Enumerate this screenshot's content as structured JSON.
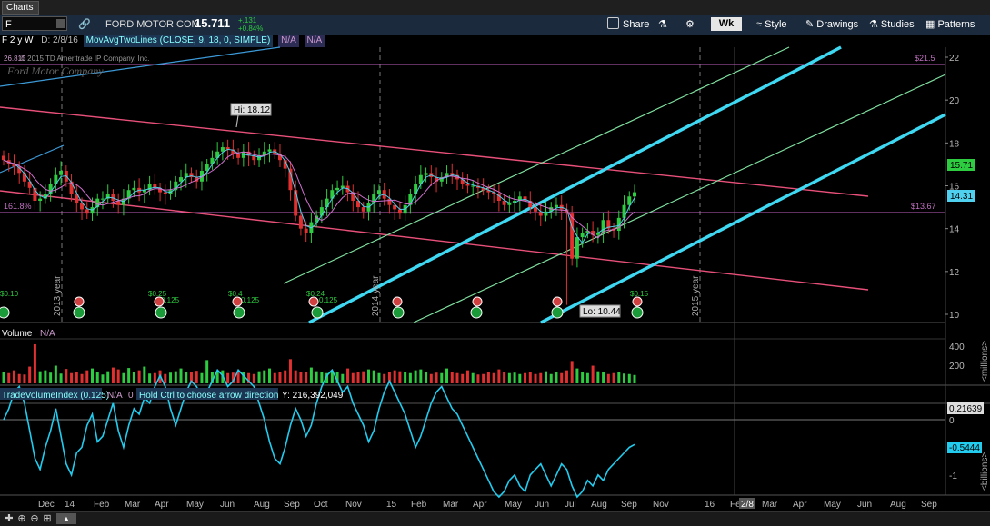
{
  "window": {
    "tab_label": "Charts"
  },
  "toolbar": {
    "symbol": "F",
    "company": "FORD MOTOR COM",
    "price": "15.711",
    "change": "+.131",
    "change_pct": "+0.84%",
    "share": "Share",
    "period": "Wk",
    "style": "Style",
    "drawings": "Drawings",
    "studies": "Studies",
    "patterns": "Patterns"
  },
  "studybar": {
    "title": "F 2 y W",
    "date": "D: 2/8/16",
    "study": "MovAvgTwoLines (CLOSE, 9, 18, 0, SIMPLE)",
    "na1": "N/A",
    "na2": "N/A"
  },
  "watermark": {
    "line1": "© 2015 TD Ameritrade IP Company, Inc.",
    "line2": "Ford Motor Company"
  },
  "price_axis": {
    "ticks": [
      "22",
      "20",
      "18",
      "16",
      "14",
      "12",
      "10"
    ],
    "last_label": "15.71",
    "ma_label": "14.31"
  },
  "annotations": {
    "hi": "Hi: 18.12",
    "lo": "Lo: 10.44",
    "fib_left": "161.8%",
    "fib_right": "$13.67",
    "top_level": "$21.5",
    "year_2013": "2013 year",
    "year_2014": "2014 year",
    "year_2015": "2015 year",
    "div1": "$0.10",
    "div2": "$0.25",
    "div2b": "0.125",
    "div3": "$0.4",
    "div3b": "0.125",
    "div4": "$0.24",
    "div4b": "0.125",
    "div5": "$0.15",
    "top_left": "26.815"
  },
  "volume": {
    "label": "Volume",
    "value": "N/A",
    "ticks": [
      "400",
      "200"
    ],
    "unit": "<millions>"
  },
  "tvi": {
    "label": "TradeVolumeIndex (0.125)",
    "na": "N/A",
    "zero": "0",
    "hint": "Hold Ctrl to choose arrow direction",
    "yval": "Y: 216,392,049",
    "ticks": [
      "0",
      "-1"
    ],
    "top_label": "0.21639",
    "cur_label": "-0.5444",
    "unit": "<billions>"
  },
  "x_axis": {
    "labels": [
      "Dec",
      "14",
      "Feb",
      "Mar",
      "Apr",
      "May",
      "Jun",
      "Aug",
      "Sep",
      "Oct",
      "Nov",
      "15",
      "Feb",
      "Mar",
      "Apr",
      "May",
      "Jun",
      "Jul",
      "Aug",
      "Sep",
      "Nov",
      "16",
      "Fe",
      "2/8",
      "Mar",
      "Apr",
      "May",
      "Jun",
      "Aug",
      "Sep"
    ]
  },
  "colors": {
    "up": "#2ecc40",
    "down": "#e03030",
    "channel": "#e8507a",
    "fork_thick": "#3fd8f2",
    "fork_thin": "#7fe0a0",
    "ma_fast": "#4fd0ef",
    "ma_slow": "#d070d0",
    "tvi_line": "#22ccee"
  }
}
